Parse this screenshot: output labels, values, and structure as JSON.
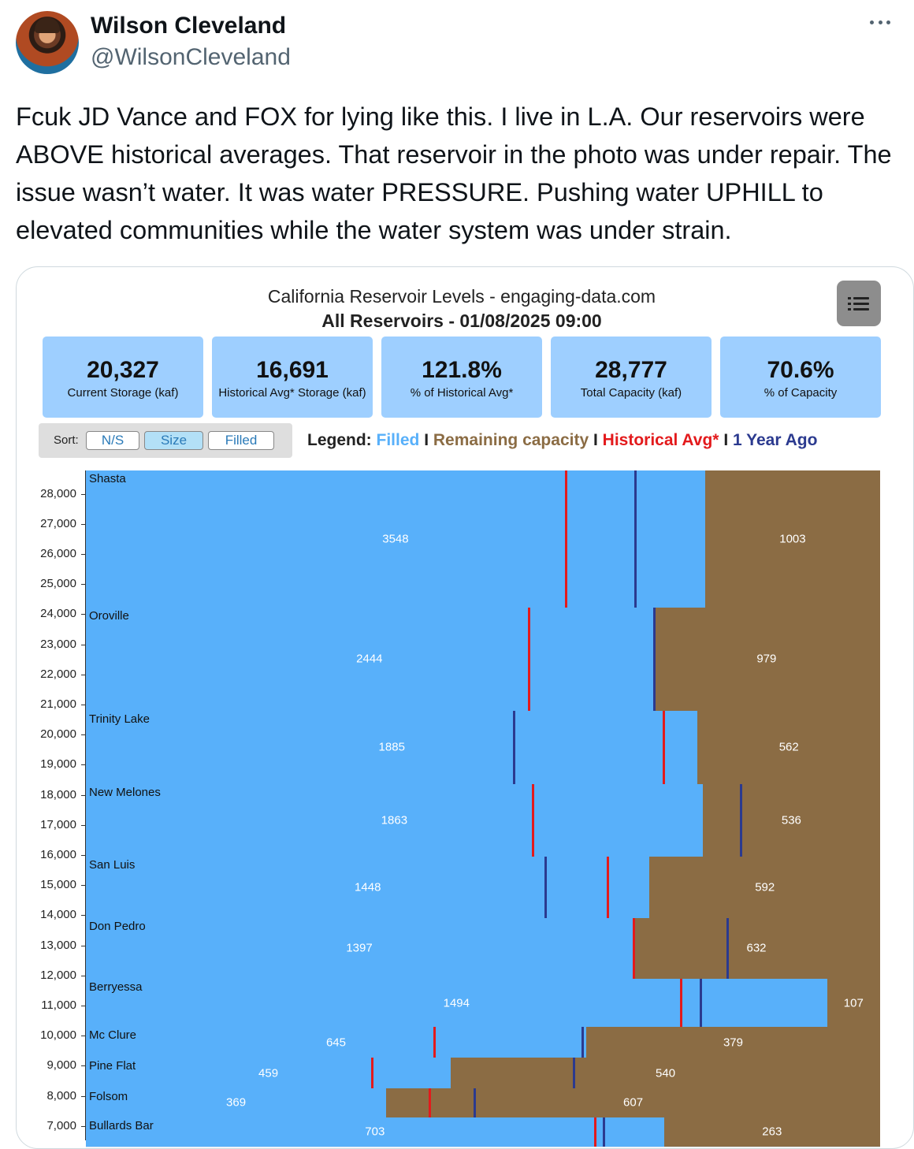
{
  "tweet": {
    "display_name": "Wilson Cleveland",
    "handle": "@WilsonCleveland",
    "text": "Fcuk JD Vance and FOX for lying like this. I live in L.A. Our reservoirs were ABOVE historical averages. That reservoir in the photo was under repair. The issue wasn’t water. It was water PRESSURE. Pushing water UPHILL to elevated communities while the water system was under strain."
  },
  "chart": {
    "title": "California Reservoir Levels - engaging-data.com",
    "subtitle": "All Reservoirs - 01/08/2025 09:00",
    "kpis": [
      {
        "value": "20,327",
        "label": "Current Storage (kaf)"
      },
      {
        "value": "16,691",
        "label": "Historical Avg* Storage (kaf)"
      },
      {
        "value": "121.8%",
        "label": "% of Historical Avg*"
      },
      {
        "value": "28,777",
        "label": "Total Capacity (kaf)"
      },
      {
        "value": "70.6%",
        "label": "% of Capacity"
      }
    ],
    "sort": {
      "label": "Sort:",
      "options": [
        "N/S",
        "Size",
        "Filled"
      ],
      "active": "Size"
    },
    "legend": {
      "prefix": "Legend:",
      "items": [
        {
          "label": "Filled",
          "color": "#58b0fa"
        },
        {
          "label": "Remaining capacity",
          "color": "#8b6c44"
        },
        {
          "label": "Historical Avg*",
          "color": "#e31a1c"
        },
        {
          "label": "1 Year Ago",
          "color": "#2b3a8f"
        }
      ],
      "separator": "I"
    },
    "colors": {
      "filled": "#58b0fa",
      "remaining": "#8b6c44",
      "historical_avg": "#e31a1c",
      "year_ago": "#2b3a8f"
    }
  },
  "chart_data": {
    "type": "bar",
    "yaxis": {
      "ticks": [
        28000,
        27000,
        26000,
        25000,
        24000,
        23000,
        22000,
        21000,
        20000,
        19000,
        18000,
        17000,
        16000,
        15000,
        14000,
        13000,
        12000,
        11000,
        10000,
        9000,
        8000,
        7000
      ],
      "tick_labels": [
        "28,000",
        "27,000",
        "26,000",
        "25,000",
        "24,000",
        "23,000",
        "22,000",
        "21,000",
        "20,000",
        "19,000",
        "18,000",
        "17,000",
        "16,000",
        "15,000",
        "14,000",
        "13,000",
        "12,000",
        "11,000",
        "10,000",
        "9,000",
        "8,000",
        "7,000"
      ],
      "top_value": 28777
    },
    "reservoirs": [
      {
        "name": "Shasta",
        "filled": 3548,
        "remaining": 1003,
        "hist_avg": 2750,
        "year_ago": 3150
      },
      {
        "name": "Oroville",
        "filled": 2444,
        "remaining": 979,
        "hist_avg": 1910,
        "year_ago": 2450
      },
      {
        "name": "Trinity Lake",
        "filled": 1885,
        "remaining": 562,
        "hist_avg": 1780,
        "year_ago": 1320
      },
      {
        "name": "New Melones",
        "filled": 1863,
        "remaining": 536,
        "hist_avg": 1350,
        "year_ago": 1980
      },
      {
        "name": "San Luis",
        "filled": 1448,
        "remaining": 592,
        "hist_avg": 1340,
        "year_ago": 1180
      },
      {
        "name": "Don Pedro",
        "filled": 1397,
        "remaining": 632,
        "hist_avg": 1400,
        "year_ago": 1640
      },
      {
        "name": "Berryessa",
        "filled": 1494,
        "remaining": 107,
        "hist_avg": 1200,
        "year_ago": 1240
      },
      {
        "name": "Mc Clure",
        "filled": 645,
        "remaining": 379,
        "hist_avg": 450,
        "year_ago": 640
      },
      {
        "name": "Pine Flat",
        "filled": 459,
        "remaining": 540,
        "hist_avg": 360,
        "year_ago": 614
      },
      {
        "name": "Folsom",
        "filled": 369,
        "remaining": 607,
        "hist_avg": 423,
        "year_ago": 478
      },
      {
        "name": "Bullards Bar",
        "filled": 703,
        "remaining": 263,
        "hist_avg": 620,
        "year_ago": 630
      }
    ]
  }
}
